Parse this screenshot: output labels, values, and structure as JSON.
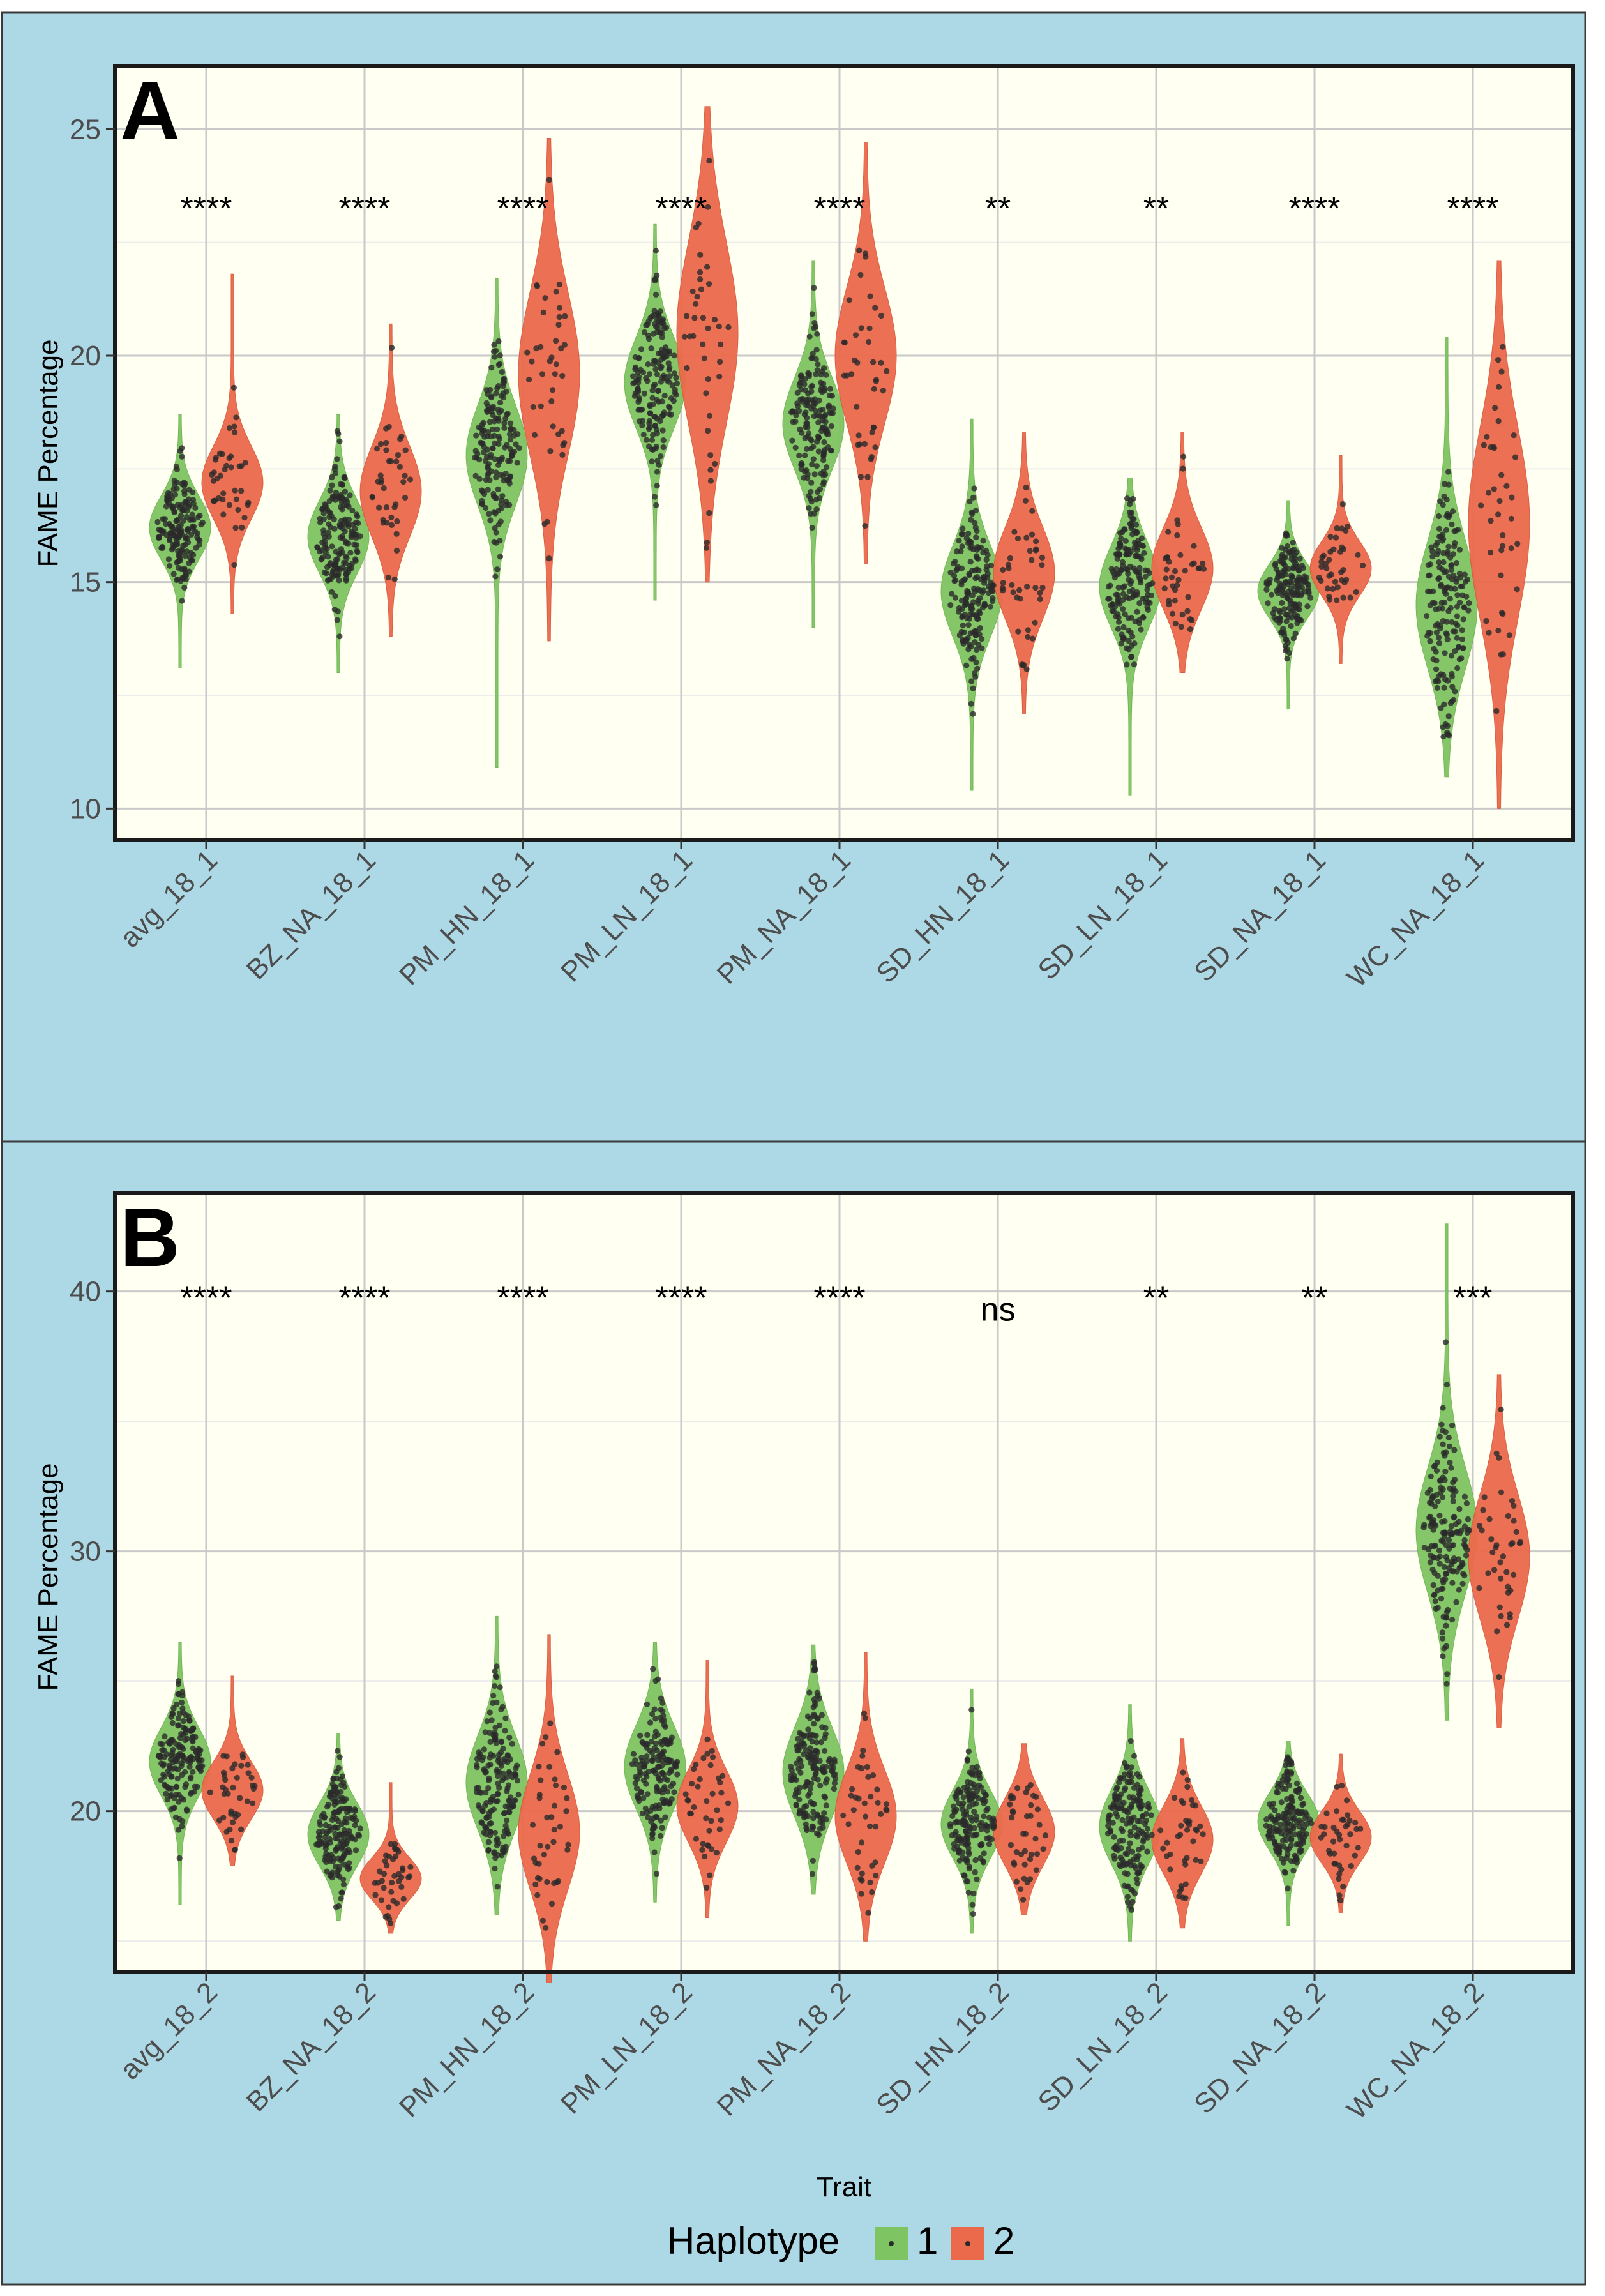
{
  "chart_data": [
    {
      "type": "violin",
      "panel_label": "A",
      "ylabel": "FAME Percentage",
      "xlabel": "",
      "ylim": [
        9.3,
        26.4
      ],
      "yticks": [
        10,
        15,
        20,
        25
      ],
      "categories": [
        "avg_18_1",
        "BZ_NA_18_1",
        "PM_HN_18_1",
        "PM_LN_18_1",
        "PM_NA_18_1",
        "SD_HN_18_1",
        "SD_LN_18_1",
        "SD_NA_18_1",
        "WC_NA_18_1"
      ],
      "significance": [
        "****",
        "****",
        "****",
        "****",
        "****",
        "**",
        "**",
        "****",
        "****"
      ],
      "significance_y": 23.4,
      "series": [
        {
          "name": "1",
          "color": "#7fc462",
          "median": [
            16.2,
            16.0,
            17.8,
            19.4,
            18.5,
            14.8,
            14.9,
            14.8,
            14.5
          ],
          "min": [
            13.1,
            13.0,
            10.9,
            14.6,
            14.0,
            10.4,
            10.3,
            12.2,
            10.7
          ],
          "max": [
            18.7,
            18.7,
            21.7,
            22.9,
            22.1,
            18.6,
            17.3,
            16.8,
            20.4
          ],
          "spread": [
            0.7,
            0.8,
            1.1,
            1.0,
            1.0,
            1.0,
            0.9,
            0.6,
            1.4
          ],
          "n_points": 170
        },
        {
          "name": "2",
          "color": "#ec6a4c",
          "median": [
            17.2,
            17.0,
            19.6,
            20.5,
            20.0,
            15.2,
            15.3,
            15.3,
            16.3
          ],
          "min": [
            14.3,
            13.8,
            13.7,
            15.0,
            15.4,
            12.1,
            13.0,
            13.2,
            10.0
          ],
          "max": [
            21.8,
            20.7,
            24.8,
            25.5,
            24.7,
            18.3,
            18.3,
            17.8,
            22.1
          ],
          "spread": [
            0.8,
            1.0,
            1.8,
            2.0,
            1.5,
            1.0,
            0.9,
            0.6,
            2.1
          ],
          "n_points": 40
        }
      ]
    },
    {
      "type": "violin",
      "panel_label": "B",
      "ylabel": "FAME Percentage",
      "xlabel": "Trait",
      "ylim": [
        13.8,
        43.8
      ],
      "yticks": [
        20,
        30,
        40
      ],
      "categories": [
        "avg_18_2",
        "BZ_NA_18_2",
        "PM_HN_18_2",
        "PM_LN_18_2",
        "PM_NA_18_2",
        "SD_HN_18_2",
        "SD_LN_18_2",
        "SD_NA_18_2",
        "WC_NA_18_2"
      ],
      "significance": [
        "****",
        "****",
        "****",
        "****",
        "****",
        "ns",
        "**",
        "**",
        "***"
      ],
      "significance_y": 40.0,
      "series": [
        {
          "name": "1",
          "color": "#7fc462",
          "median": [
            21.9,
            19.1,
            21.1,
            21.7,
            21.5,
            19.5,
            19.4,
            19.6,
            30.8
          ],
          "min": [
            16.4,
            15.8,
            16.0,
            16.5,
            16.8,
            15.3,
            15.0,
            15.6,
            23.5
          ],
          "max": [
            26.5,
            23.0,
            27.5,
            26.5,
            26.4,
            24.7,
            24.1,
            22.7,
            42.6
          ],
          "spread": [
            1.3,
            1.2,
            1.8,
            1.6,
            1.7,
            1.3,
            1.4,
            1.1,
            2.4
          ],
          "n_points": 170
        },
        {
          "name": "2",
          "color": "#ec6a4c",
          "median": [
            20.8,
            17.4,
            19.2,
            20.2,
            19.8,
            19.2,
            18.9,
            19.0,
            29.8
          ],
          "min": [
            17.9,
            15.3,
            13.4,
            15.9,
            15.0,
            16.0,
            15.5,
            16.1,
            23.2
          ],
          "max": [
            25.2,
            21.1,
            26.8,
            25.8,
            26.1,
            22.6,
            22.8,
            22.2,
            36.8
          ],
          "spread": [
            1.1,
            0.8,
            2.2,
            1.4,
            1.8,
            1.3,
            1.3,
            1.0,
            2.4
          ],
          "n_points": 40
        }
      ]
    }
  ],
  "legend": {
    "title": "Haplotype",
    "items": [
      {
        "label": "1",
        "color": "#7fc462"
      },
      {
        "label": "2",
        "color": "#ec6a4c"
      }
    ]
  }
}
